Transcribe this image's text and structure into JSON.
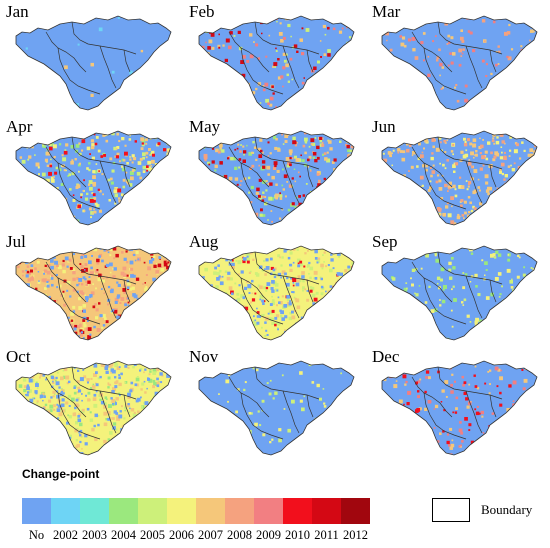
{
  "map": {
    "months": [
      {
        "label": "Jan",
        "dominant": "No",
        "mix": {
          "No": 0.97,
          "2002": 0.02,
          "2007": 0.01
        }
      },
      {
        "label": "Feb",
        "dominant": "No",
        "mix": {
          "No": 0.8,
          "2007": 0.05,
          "2009": 0.05,
          "2011": 0.05,
          "2005": 0.05
        }
      },
      {
        "label": "Mar",
        "dominant": "No",
        "mix": {
          "No": 0.85,
          "2008": 0.05,
          "2007": 0.05,
          "2009": 0.05
        }
      },
      {
        "label": "Apr",
        "dominant": "No",
        "mix": {
          "No": 0.55,
          "2007": 0.15,
          "2006": 0.1,
          "2005": 0.08,
          "2010": 0.06,
          "2004": 0.06
        }
      },
      {
        "label": "May",
        "dominant": "No",
        "mix": {
          "No": 0.55,
          "2007": 0.12,
          "2005": 0.08,
          "2004": 0.08,
          "2011": 0.09,
          "2008": 0.08
        }
      },
      {
        "label": "Jun",
        "dominant": "No",
        "mix": {
          "No": 0.6,
          "2007": 0.2,
          "2008": 0.1,
          "2006": 0.1
        }
      },
      {
        "label": "Jul",
        "dominant": "2007",
        "mix": {
          "2007": 0.4,
          "2008": 0.2,
          "No": 0.2,
          "2011": 0.1,
          "2006": 0.1
        }
      },
      {
        "label": "Aug",
        "dominant": "2006",
        "mix": {
          "2006": 0.45,
          "2005": 0.2,
          "No": 0.2,
          "2007": 0.1,
          "2010": 0.05
        }
      },
      {
        "label": "Sep",
        "dominant": "No",
        "mix": {
          "No": 0.8,
          "2006": 0.1,
          "2005": 0.05,
          "2004": 0.05
        }
      },
      {
        "label": "Oct",
        "dominant": "2006",
        "mix": {
          "2006": 0.35,
          "2007": 0.2,
          "No": 0.25,
          "2005": 0.1,
          "2004": 0.1
        }
      },
      {
        "label": "Nov",
        "dominant": "No",
        "mix": {
          "No": 0.9,
          "2006": 0.05,
          "2005": 0.05
        }
      },
      {
        "label": "Dec",
        "dominant": "No",
        "mix": {
          "No": 0.78,
          "2009": 0.08,
          "2010": 0.06,
          "2007": 0.08
        }
      }
    ]
  },
  "legend": {
    "title": "Change-point",
    "classes": [
      {
        "label": "No",
        "color": "#6fa3f2"
      },
      {
        "label": "2002",
        "color": "#6ed4f5"
      },
      {
        "label": "2003",
        "color": "#6fe8d6"
      },
      {
        "label": "2004",
        "color": "#9be87e"
      },
      {
        "label": "2005",
        "color": "#cdf07a"
      },
      {
        "label": "2006",
        "color": "#f4f27c"
      },
      {
        "label": "2007",
        "color": "#f5c77a"
      },
      {
        "label": "2008",
        "color": "#f5a27f"
      },
      {
        "label": "2009",
        "color": "#f27f82"
      },
      {
        "label": "2010",
        "color": "#f20f1c"
      },
      {
        "label": "2011",
        "color": "#d40814"
      },
      {
        "label": "2012",
        "color": "#a1060e"
      }
    ],
    "boundary_label": "Boundary"
  }
}
